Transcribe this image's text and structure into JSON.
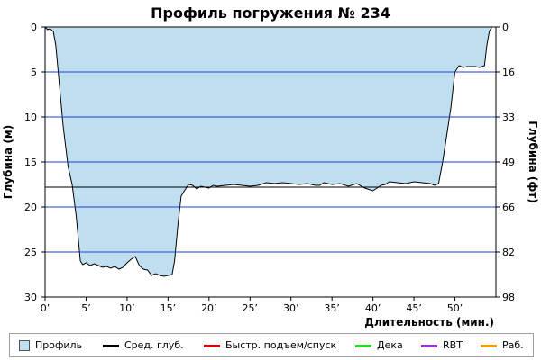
{
  "chart_data": {
    "type": "area",
    "title": "Профиль погружения № 234",
    "xlabel": "Длительность (мин.)",
    "ylabel_left": "Глубина (м)",
    "ylabel_right": "Глубина (фт)",
    "xlim": [
      0,
      55
    ],
    "ylim": [
      0,
      30
    ],
    "y_inverted": true,
    "x_ticks": [
      "0’",
      "5’",
      "10’",
      "15’",
      "20’",
      "25’",
      "30’",
      "35’",
      "40’",
      "45’",
      "50’"
    ],
    "x_tick_values": [
      0,
      5,
      10,
      15,
      20,
      25,
      30,
      35,
      40,
      45,
      50
    ],
    "y_ticks_left": [
      "0",
      "5",
      "10",
      "15",
      "20",
      "25",
      "30"
    ],
    "y_tick_values_left": [
      0,
      5,
      10,
      15,
      20,
      25,
      30
    ],
    "y_ticks_right": [
      "0",
      "16",
      "33",
      "49",
      "66",
      "82",
      "98"
    ],
    "grid": "horizontal",
    "average_depth": 17.8,
    "profile": {
      "name": "Профиль",
      "x": [
        0,
        0.3,
        0.6,
        1.0,
        1.3,
        1.7,
        2.2,
        2.8,
        3.3,
        3.8,
        4.3,
        4.6,
        5.0,
        5.5,
        6.0,
        6.5,
        7.0,
        7.5,
        8.0,
        8.5,
        9.0,
        9.5,
        10.0,
        10.5,
        11.0,
        11.5,
        12.0,
        12.5,
        13.0,
        13.5,
        14.0,
        14.5,
        15.0,
        15.5,
        15.8,
        16.2,
        16.6,
        17.0,
        17.5,
        18.0,
        18.5,
        19.0,
        19.5,
        20.0,
        20.5,
        21.0,
        22.0,
        23.0,
        24.0,
        25.0,
        26.0,
        27.0,
        28.0,
        29.0,
        30.0,
        31.0,
        32.0,
        33.0,
        33.5,
        34.0,
        35.0,
        36.0,
        37.0,
        38.0,
        39.0,
        40.0,
        41.0,
        41.5,
        42.0,
        43.0,
        44.0,
        45.0,
        46.0,
        47.0,
        47.5,
        48.0,
        48.5,
        49.0,
        49.5,
        50.0,
        50.5,
        51.0,
        51.5,
        52.0,
        52.5,
        53.0,
        53.3,
        53.6,
        53.9,
        54.2,
        54.5
      ],
      "depth": [
        0,
        0.3,
        0.2,
        0.5,
        2.0,
        6.0,
        11.0,
        15.5,
        17.5,
        21.0,
        26.0,
        26.4,
        26.2,
        26.5,
        26.3,
        26.5,
        26.7,
        26.6,
        26.8,
        26.6,
        26.9,
        26.7,
        26.2,
        25.8,
        25.5,
        26.5,
        26.9,
        27.0,
        27.6,
        27.4,
        27.6,
        27.7,
        27.6,
        27.5,
        26.0,
        22.0,
        18.8,
        18.2,
        17.5,
        17.6,
        18.0,
        17.7,
        17.8,
        17.9,
        17.6,
        17.7,
        17.6,
        17.5,
        17.6,
        17.7,
        17.6,
        17.3,
        17.4,
        17.3,
        17.4,
        17.5,
        17.4,
        17.6,
        17.6,
        17.3,
        17.5,
        17.4,
        17.7,
        17.4,
        17.9,
        18.2,
        17.6,
        17.5,
        17.2,
        17.3,
        17.4,
        17.2,
        17.3,
        17.4,
        17.6,
        17.4,
        15.0,
        12.0,
        9.0,
        5.0,
        4.3,
        4.5,
        4.4,
        4.4,
        4.4,
        4.5,
        4.4,
        4.3,
        2.0,
        0.5,
        0
      ]
    },
    "legend": [
      {
        "name": "Профиль",
        "kind": "box",
        "color": "#bfdff0"
      },
      {
        "name": "Сред. глуб.",
        "kind": "line",
        "color": "#000000"
      },
      {
        "name": "Быстр. подъем/спуск",
        "kind": "line",
        "color": "#e00000"
      },
      {
        "name": "Дека",
        "kind": "line",
        "color": "#22dd22"
      },
      {
        "name": "RBT",
        "kind": "line",
        "color": "#9933dd"
      },
      {
        "name": "Раб.",
        "kind": "line",
        "color": "#ff9900"
      }
    ],
    "colors": {
      "fill": "#bfdff0",
      "outline": "#000000",
      "grid": "#1f3fcf",
      "avg_line": "#000000"
    },
    "legend_placement": "bottom"
  }
}
